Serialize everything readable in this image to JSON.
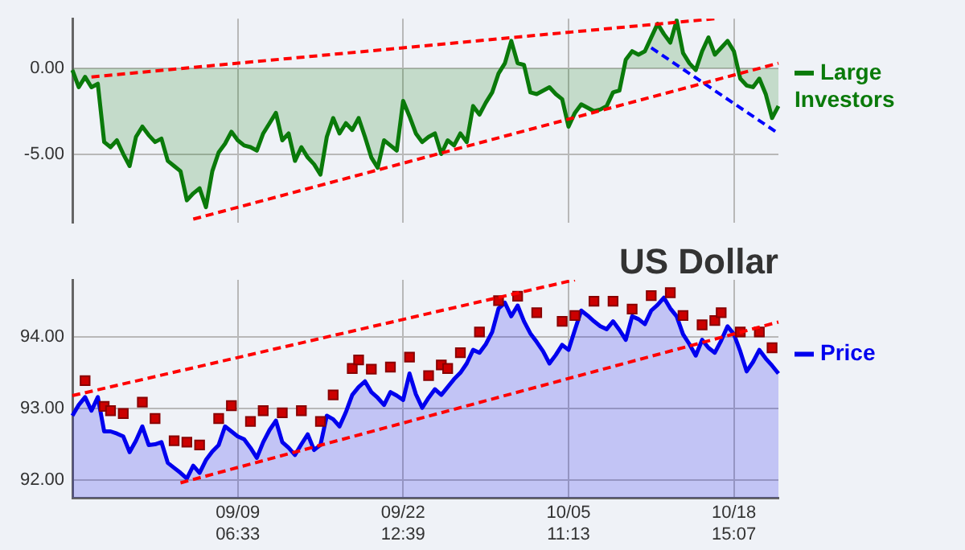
{
  "chart_data": [
    {
      "type": "area",
      "categories": [
        null,
        null,
        null,
        null,
        null,
        null,
        null,
        null,
        null,
        null,
        null,
        null,
        null,
        null,
        null,
        null,
        null,
        null,
        null,
        null,
        null,
        null,
        null,
        null,
        null,
        null,
        null,
        null,
        null,
        null,
        null,
        null,
        null,
        null,
        null,
        null,
        null,
        null,
        null,
        null,
        null,
        null,
        null,
        null,
        null,
        null,
        null,
        null,
        null,
        null,
        null,
        null,
        null,
        null,
        null,
        null,
        null,
        null,
        null,
        null,
        null,
        null,
        null,
        null,
        null,
        null,
        null,
        null,
        null,
        null,
        null,
        null,
        null,
        null,
        null,
        null,
        null,
        null,
        null,
        null,
        null,
        null,
        null,
        null,
        null,
        null,
        null,
        null,
        null,
        null,
        null,
        null,
        null,
        null,
        null,
        null,
        null,
        null,
        null,
        null,
        null,
        null,
        null,
        null,
        null,
        null,
        null,
        null,
        null,
        null,
        null,
        null
      ],
      "ylim": [
        -9,
        2.9
      ],
      "yticks": [
        {
          "value": -5,
          "label": "-5.00"
        },
        {
          "value": 0,
          "label": "0.00"
        }
      ],
      "tick_labels": "y",
      "grid": true,
      "legend": "right",
      "marker": "none",
      "series": [
        {
          "name": "Large Investors",
          "color": "#0a7a0a",
          "values": [
            -0.1,
            -1.1,
            -0.5,
            -1.1,
            -0.9,
            -4.3,
            -4.6,
            -4.2,
            -5.0,
            -5.7,
            -4.0,
            -3.4,
            -3.9,
            -4.3,
            -4.1,
            -5.4,
            -5.7,
            -6.0,
            -7.7,
            -7.3,
            -7.0,
            -8.1,
            -6.0,
            -4.9,
            -4.4,
            -3.7,
            -4.2,
            -4.5,
            -4.6,
            -4.8,
            -3.8,
            -3.2,
            -2.6,
            -4.2,
            -3.8,
            -5.4,
            -4.6,
            -5.2,
            -5.6,
            -6.2,
            -4.0,
            -2.9,
            -3.8,
            -3.2,
            -3.6,
            -2.9,
            -4.0,
            -5.2,
            -5.8,
            -4.2,
            -4.5,
            -4.8,
            -1.9,
            -2.8,
            -3.8,
            -4.3,
            -4.0,
            -3.8,
            -5.0,
            -4.2,
            -4.5,
            -3.8,
            -4.3,
            -2.2,
            -2.7,
            -2.0,
            -1.4,
            -0.3,
            0.3,
            1.6,
            0.3,
            0.2,
            -1.4,
            -1.5,
            -1.3,
            -1.1,
            -1.5,
            -1.8,
            -3.4,
            -2.6,
            -2.1,
            -2.3,
            -2.5,
            -2.4,
            -2.2,
            -1.4,
            -1.3,
            0.5,
            1.0,
            0.8,
            1.0,
            1.8,
            2.6,
            2.0,
            1.5,
            2.8,
            0.9,
            0.3,
            -0.1,
            1.0,
            1.8,
            0.8,
            1.2,
            1.6,
            1.0,
            -0.6,
            -1.0,
            -1.1,
            -0.6,
            -1.5,
            -2.9,
            -2.2
          ]
        },
        {
          "type": "line",
          "color": "#ff0000",
          "line_style": "dashed",
          "values": [
            null,
            null,
            null,
            -0.5,
            null,
            null,
            null,
            null,
            null,
            null,
            null,
            null,
            null,
            null,
            null,
            null,
            null,
            null,
            null,
            null,
            null,
            null,
            null,
            null,
            null,
            null,
            null,
            null,
            null,
            null,
            null,
            null,
            null,
            null,
            null,
            null,
            null,
            null,
            null,
            null,
            null,
            null,
            null,
            null,
            null,
            null,
            null,
            null,
            null,
            null,
            null,
            null,
            null,
            null,
            null,
            null,
            null,
            null,
            null,
            null,
            null,
            null,
            null,
            null,
            null,
            null,
            null,
            null,
            null,
            null,
            null,
            null,
            null,
            null,
            null,
            null,
            null,
            null,
            null,
            null,
            null,
            null,
            null,
            null,
            null,
            null,
            null,
            null,
            null,
            null,
            null,
            null,
            null,
            null,
            null,
            null,
            null,
            null,
            null,
            null,
            null,
            2.9,
            null,
            null,
            null,
            null,
            null,
            null,
            null,
            null,
            null,
            null
          ]
        },
        {
          "type": "line",
          "color": "#ff0000",
          "line_style": "dashed",
          "values": [
            null,
            null,
            null,
            null,
            null,
            null,
            null,
            null,
            null,
            null,
            null,
            null,
            null,
            null,
            null,
            null,
            null,
            null,
            null,
            -8.8,
            null,
            null,
            null,
            null,
            null,
            null,
            null,
            null,
            null,
            null,
            null,
            null,
            null,
            null,
            null,
            null,
            null,
            null,
            null,
            null,
            null,
            null,
            null,
            null,
            null,
            null,
            null,
            null,
            null,
            null,
            null,
            null,
            null,
            null,
            null,
            null,
            null,
            null,
            null,
            null,
            null,
            null,
            null,
            null,
            null,
            null,
            null,
            null,
            null,
            null,
            null,
            null,
            null,
            null,
            null,
            null,
            null,
            null,
            null,
            null,
            null,
            null,
            null,
            null,
            null,
            null,
            null,
            null,
            null,
            null,
            null,
            null,
            null,
            null,
            null,
            null,
            null,
            null,
            null,
            null,
            null,
            null,
            null,
            null,
            null,
            null,
            null,
            null,
            null,
            null,
            null,
            0.3
          ]
        },
        {
          "type": "line",
          "color": "#0000ff",
          "line_style": "dashed",
          "values": [
            null,
            null,
            null,
            null,
            null,
            null,
            null,
            null,
            null,
            null,
            null,
            null,
            null,
            null,
            null,
            null,
            null,
            null,
            null,
            null,
            null,
            null,
            null,
            null,
            null,
            null,
            null,
            null,
            null,
            null,
            null,
            null,
            null,
            null,
            null,
            null,
            null,
            null,
            null,
            null,
            null,
            null,
            null,
            null,
            null,
            null,
            null,
            null,
            null,
            null,
            null,
            null,
            null,
            null,
            null,
            null,
            null,
            null,
            null,
            null,
            null,
            null,
            null,
            null,
            null,
            null,
            null,
            null,
            null,
            null,
            null,
            null,
            null,
            null,
            null,
            null,
            null,
            null,
            null,
            null,
            null,
            null,
            null,
            null,
            null,
            null,
            null,
            null,
            null,
            null,
            null,
            1.2,
            null,
            null,
            null,
            null,
            null,
            null,
            null,
            null,
            null,
            null,
            null,
            null,
            null,
            null,
            null,
            null,
            null,
            null,
            null,
            -3.8
          ]
        }
      ]
    },
    {
      "type": "area",
      "title": "US Dollar",
      "categories": [
        null,
        null,
        null,
        null,
        null,
        null,
        null,
        null,
        null,
        null,
        null,
        null,
        null,
        null,
        null,
        null,
        null,
        null,
        null,
        null,
        null,
        null,
        null,
        null,
        null,
        null,
        "09/09 06:33",
        null,
        null,
        null,
        null,
        null,
        null,
        null,
        null,
        null,
        null,
        null,
        null,
        null,
        null,
        null,
        null,
        null,
        null,
        null,
        null,
        null,
        null,
        null,
        null,
        null,
        "09/22 12:39",
        null,
        null,
        null,
        null,
        null,
        null,
        null,
        null,
        null,
        null,
        null,
        null,
        null,
        null,
        null,
        null,
        null,
        null,
        null,
        null,
        null,
        null,
        null,
        null,
        null,
        "10/05 11:13",
        null,
        null,
        null,
        null,
        null,
        null,
        null,
        null,
        null,
        null,
        null,
        null,
        null,
        null,
        null,
        null,
        null,
        null,
        null,
        null,
        null,
        null,
        null,
        null,
        null,
        "10/18 15:07",
        null,
        null,
        null,
        null,
        null,
        null,
        null
      ],
      "ylim": [
        91.75,
        94.8
      ],
      "yticks": [
        {
          "value": 92,
          "label": "92.00"
        },
        {
          "value": 93,
          "label": "93.00"
        },
        {
          "value": 94,
          "label": "94.00"
        }
      ],
      "grid": true,
      "legend": "right",
      "marker": "none",
      "series": [
        {
          "name": "Price",
          "color": "#0000ee",
          "values": [
            92.9,
            93.05,
            93.16,
            92.97,
            93.16,
            92.68,
            92.68,
            92.65,
            92.61,
            92.39,
            92.55,
            92.75,
            92.49,
            92.5,
            92.53,
            92.24,
            92.17,
            92.1,
            92.02,
            92.2,
            92.1,
            92.28,
            92.4,
            92.49,
            92.75,
            92.68,
            92.61,
            92.57,
            92.45,
            92.31,
            92.53,
            92.7,
            92.83,
            92.53,
            92.45,
            92.35,
            92.5,
            92.64,
            92.42,
            92.49,
            92.9,
            92.85,
            92.75,
            92.95,
            93.19,
            93.3,
            93.38,
            93.23,
            93.15,
            93.05,
            93.23,
            93.18,
            93.12,
            93.49,
            93.2,
            93.01,
            93.15,
            93.27,
            93.19,
            93.3,
            93.41,
            93.5,
            93.63,
            93.82,
            93.78,
            93.9,
            94.07,
            94.4,
            94.48,
            94.29,
            94.44,
            94.22,
            94.05,
            93.93,
            93.8,
            93.63,
            93.75,
            93.89,
            93.82,
            94.1,
            94.37,
            94.3,
            94.22,
            94.15,
            94.11,
            94.22,
            94.1,
            93.96,
            94.29,
            94.25,
            94.18,
            94.37,
            94.45,
            94.55,
            94.4,
            94.29,
            94.04,
            93.9,
            93.74,
            93.96,
            93.85,
            93.78,
            93.95,
            94.15,
            94.04,
            93.8,
            93.52,
            93.65,
            93.82,
            93.7,
            93.6,
            93.49
          ]
        },
        {
          "type": "scatter",
          "color": "#cc0000",
          "marker": "square",
          "values": [
            null,
            null,
            93.39,
            null,
            null,
            93.03,
            92.97,
            null,
            92.93,
            null,
            null,
            93.09,
            null,
            92.86,
            null,
            null,
            92.55,
            null,
            92.53,
            null,
            92.49,
            null,
            null,
            92.86,
            null,
            93.04,
            null,
            null,
            92.82,
            null,
            92.97,
            null,
            null,
            92.94,
            null,
            null,
            92.97,
            null,
            null,
            92.82,
            null,
            93.19,
            null,
            null,
            93.56,
            93.68,
            null,
            93.55,
            null,
            null,
            93.58,
            null,
            null,
            93.72,
            null,
            null,
            93.46,
            null,
            93.61,
            93.56,
            null,
            93.78,
            null,
            null,
            94.07,
            null,
            null,
            94.51,
            null,
            null,
            94.57,
            null,
            null,
            94.34,
            null,
            null,
            null,
            94.22,
            null,
            94.3,
            null,
            null,
            94.5,
            null,
            null,
            94.5,
            null,
            null,
            94.39,
            null,
            null,
            94.58,
            null,
            null,
            94.62,
            null,
            94.3,
            null,
            null,
            94.17,
            null,
            94.23,
            94.34,
            null,
            null,
            94.07,
            null,
            null,
            94.07,
            null,
            93.85,
            null
          ]
        },
        {
          "type": "line",
          "color": "#ff0000",
          "line_style": "dashed",
          "values": [
            93.18,
            null,
            null,
            null,
            null,
            null,
            null,
            null,
            null,
            null,
            null,
            null,
            null,
            null,
            null,
            null,
            null,
            null,
            null,
            null,
            null,
            null,
            null,
            null,
            null,
            null,
            null,
            null,
            null,
            null,
            null,
            null,
            null,
            null,
            null,
            null,
            null,
            null,
            null,
            null,
            null,
            null,
            null,
            null,
            null,
            null,
            null,
            null,
            null,
            null,
            null,
            null,
            null,
            null,
            null,
            null,
            null,
            null,
            null,
            null,
            null,
            null,
            null,
            null,
            null,
            null,
            null,
            null,
            null,
            null,
            null,
            null,
            null,
            null,
            null,
            null,
            null,
            null,
            null,
            94.8,
            null,
            null,
            null,
            null,
            null,
            null,
            null,
            null,
            null,
            null,
            null,
            null,
            null,
            null,
            null,
            null,
            null,
            null,
            null,
            null,
            null,
            null,
            null,
            null,
            null,
            null,
            null,
            null,
            null,
            null,
            null,
            null
          ]
        },
        {
          "type": "line",
          "color": "#ff0000",
          "line_style": "dashed",
          "values": [
            null,
            null,
            null,
            null,
            null,
            null,
            null,
            null,
            null,
            null,
            null,
            null,
            null,
            null,
            null,
            null,
            null,
            91.96,
            null,
            null,
            null,
            null,
            null,
            null,
            null,
            null,
            null,
            null,
            null,
            null,
            null,
            null,
            null,
            null,
            null,
            null,
            null,
            null,
            null,
            null,
            null,
            null,
            null,
            null,
            null,
            null,
            null,
            null,
            null,
            null,
            null,
            null,
            null,
            null,
            null,
            null,
            null,
            null,
            null,
            null,
            null,
            null,
            null,
            null,
            null,
            null,
            null,
            null,
            null,
            null,
            null,
            null,
            null,
            null,
            null,
            null,
            null,
            null,
            null,
            null,
            null,
            null,
            null,
            null,
            null,
            null,
            null,
            null,
            null,
            null,
            null,
            null,
            null,
            null,
            null,
            null,
            null,
            null,
            null,
            null,
            null,
            null,
            null,
            null,
            null,
            null,
            null,
            null,
            null,
            null,
            null,
            94.21
          ]
        }
      ]
    }
  ]
}
